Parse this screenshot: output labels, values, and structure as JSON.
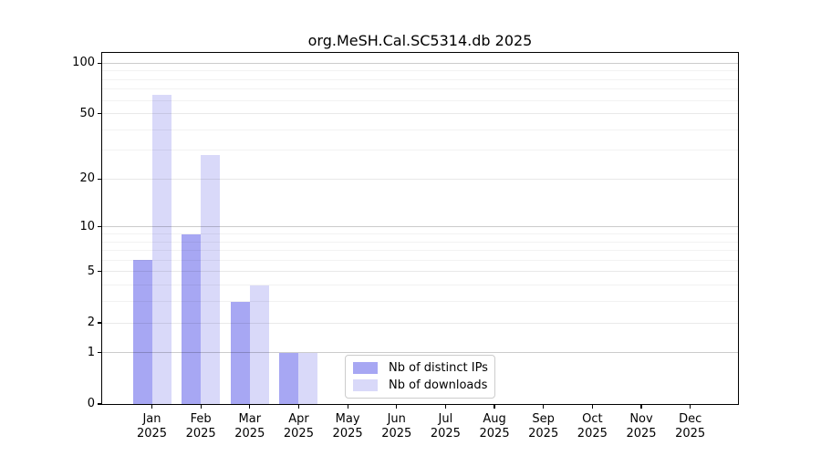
{
  "chart_data": {
    "type": "bar",
    "title": "org.MeSH.Cal.SC5314.db 2025",
    "categories": [
      "Jan 2025",
      "Feb 2025",
      "Mar 2025",
      "Apr 2025",
      "May 2025",
      "Jun 2025",
      "Jul 2025",
      "Aug 2025",
      "Sep 2025",
      "Oct 2025",
      "Nov 2025",
      "Dec 2025"
    ],
    "series": [
      {
        "name": "Nb of distinct IPs",
        "color": "#a7a7f3",
        "values": [
          6,
          9,
          3,
          1,
          0,
          0,
          0,
          0,
          0,
          0,
          0,
          0
        ]
      },
      {
        "name": "Nb of downloads",
        "color": "#d9d9f9",
        "values": [
          65,
          28,
          4,
          1,
          0,
          0,
          0,
          0,
          0,
          0,
          0,
          0
        ]
      }
    ],
    "xlabel": "",
    "ylabel": "",
    "y_scale": "log1p",
    "y_ticks": [
      0,
      1,
      2,
      5,
      10,
      20,
      50,
      100
    ],
    "y_minor_ticks": [
      3,
      4,
      6,
      7,
      8,
      9,
      30,
      40,
      60,
      70,
      80,
      90
    ],
    "ylim": [
      0,
      115
    ],
    "grid": true,
    "legend_position": "lower center",
    "colors": {
      "axis": "#000000",
      "grid_major": "#cccccc",
      "grid_minor": "#f1f1f1",
      "legend_border": "#cccccc",
      "background": "#ffffff"
    }
  }
}
